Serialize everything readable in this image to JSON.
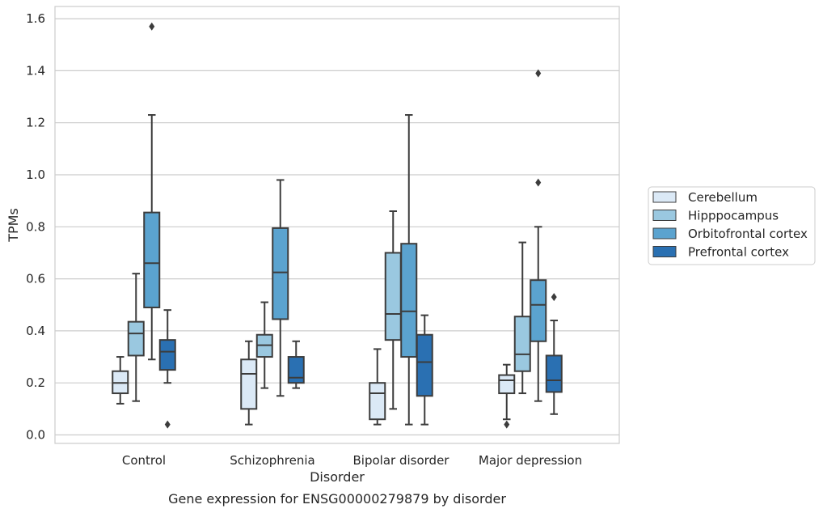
{
  "chart_data": {
    "type": "box",
    "title": "",
    "caption": "Gene expression for ENSG00000279879 by disorder",
    "xlabel": "Disorder",
    "ylabel": "TPMs",
    "ylim": [
      -0.03,
      1.65
    ],
    "yticks": [
      0.0,
      0.2,
      0.4,
      0.6,
      0.8,
      1.0,
      1.2,
      1.4,
      1.6
    ],
    "ytick_labels": [
      "0.0",
      "0.2",
      "0.4",
      "0.6",
      "0.8",
      "1.0",
      "1.2",
      "1.4",
      "1.6"
    ],
    "grid": true,
    "legend_position": "right",
    "categories": [
      "Control",
      "Schizophrenia",
      "Bipolar disorder",
      "Major depression"
    ],
    "series": [
      {
        "name": "Cerebellum",
        "color": "#dbe9f6",
        "boxes": [
          {
            "min": 0.12,
            "q1": 0.16,
            "median": 0.2,
            "q3": 0.245,
            "max": 0.3,
            "outliers": []
          },
          {
            "min": 0.04,
            "q1": 0.1,
            "median": 0.235,
            "q3": 0.29,
            "max": 0.36,
            "outliers": []
          },
          {
            "min": 0.04,
            "q1": 0.06,
            "median": 0.16,
            "q3": 0.2,
            "max": 0.33,
            "outliers": []
          },
          {
            "min": 0.06,
            "q1": 0.16,
            "median": 0.21,
            "q3": 0.23,
            "max": 0.27,
            "outliers": [
              0.04
            ]
          }
        ]
      },
      {
        "name": "Hipppocampus",
        "color": "#9ac8e0",
        "boxes": [
          {
            "min": 0.13,
            "q1": 0.305,
            "median": 0.39,
            "q3": 0.435,
            "max": 0.62,
            "outliers": []
          },
          {
            "min": 0.18,
            "q1": 0.3,
            "median": 0.345,
            "q3": 0.385,
            "max": 0.51,
            "outliers": []
          },
          {
            "min": 0.1,
            "q1": 0.365,
            "median": 0.465,
            "q3": 0.7,
            "max": 0.86,
            "outliers": []
          },
          {
            "min": 0.16,
            "q1": 0.245,
            "median": 0.31,
            "q3": 0.455,
            "max": 0.74,
            "outliers": []
          }
        ]
      },
      {
        "name": "Orbitofrontal cortex",
        "color": "#5ba3cf",
        "boxes": [
          {
            "min": 0.29,
            "q1": 0.49,
            "median": 0.66,
            "q3": 0.855,
            "max": 1.23,
            "outliers": [
              1.57
            ]
          },
          {
            "min": 0.15,
            "q1": 0.445,
            "median": 0.625,
            "q3": 0.795,
            "max": 0.98,
            "outliers": []
          },
          {
            "min": 0.04,
            "q1": 0.3,
            "median": 0.475,
            "q3": 0.735,
            "max": 1.23,
            "outliers": []
          },
          {
            "min": 0.13,
            "q1": 0.36,
            "median": 0.5,
            "q3": 0.595,
            "max": 0.8,
            "outliers": [
              0.97,
              1.39
            ]
          }
        ]
      },
      {
        "name": "Prefrontal cortex",
        "color": "#2a70b2",
        "boxes": [
          {
            "min": 0.2,
            "q1": 0.25,
            "median": 0.32,
            "q3": 0.365,
            "max": 0.48,
            "outliers": [
              0.04
            ]
          },
          {
            "min": 0.18,
            "q1": 0.2,
            "median": 0.22,
            "q3": 0.3,
            "max": 0.36,
            "outliers": []
          },
          {
            "min": 0.04,
            "q1": 0.15,
            "median": 0.28,
            "q3": 0.385,
            "max": 0.46,
            "outliers": []
          },
          {
            "min": 0.08,
            "q1": 0.165,
            "median": 0.21,
            "q3": 0.305,
            "max": 0.44,
            "outliers": [
              0.53
            ]
          }
        ]
      }
    ]
  }
}
